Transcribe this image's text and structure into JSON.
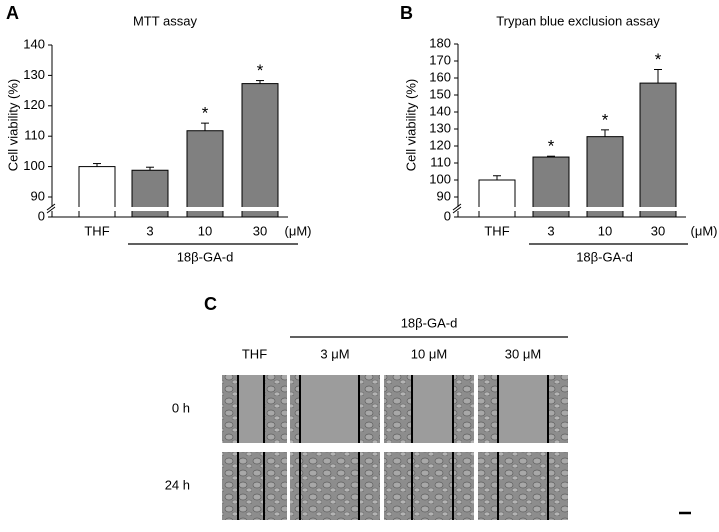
{
  "chart_data": [
    {
      "type": "bar",
      "panel_label": "A",
      "title": "MTT assay",
      "y_label": "Cell viability (%)",
      "categories": [
        "THF",
        "3",
        "10",
        "30"
      ],
      "x_unit": "(μM)",
      "group_label": "18β-GA-d",
      "values": [
        100,
        98.8,
        111.8,
        127.3
      ],
      "errors": [
        1,
        1,
        2.5,
        1
      ],
      "annotations": [
        null,
        null,
        "*",
        "*"
      ],
      "colors": [
        "#ffffff",
        "#808080",
        "#808080",
        "#808080"
      ],
      "ylim": [
        0,
        140
      ],
      "axis_break": [
        0,
        90
      ],
      "yticks": [
        0,
        90,
        100,
        110,
        120,
        130,
        140
      ],
      "grid": false
    },
    {
      "type": "bar",
      "panel_label": "B",
      "title": "Trypan blue exclusion assay",
      "y_label": "Cell viability (%)",
      "categories": [
        "THF",
        "3",
        "10",
        "30"
      ],
      "x_unit": "(μM)",
      "group_label": "18β-GA-d",
      "values": [
        100,
        113.5,
        125.5,
        157
      ],
      "errors": [
        2.5,
        0.5,
        4,
        8
      ],
      "annotations": [
        null,
        "*",
        "*",
        "*"
      ],
      "colors": [
        "#ffffff",
        "#808080",
        "#808080",
        "#808080"
      ],
      "ylim": [
        0,
        180
      ],
      "axis_break": [
        0,
        90
      ],
      "yticks": [
        0,
        90,
        100,
        110,
        120,
        130,
        140,
        150,
        160,
        170,
        180
      ],
      "grid": false
    }
  ],
  "image_grid": {
    "panel_label": "C",
    "group_label": "18β-GA-d",
    "columns": [
      "THF",
      "3 μM",
      "10 μM",
      "30 μM"
    ],
    "rows": [
      "0 h",
      "24 h"
    ]
  }
}
